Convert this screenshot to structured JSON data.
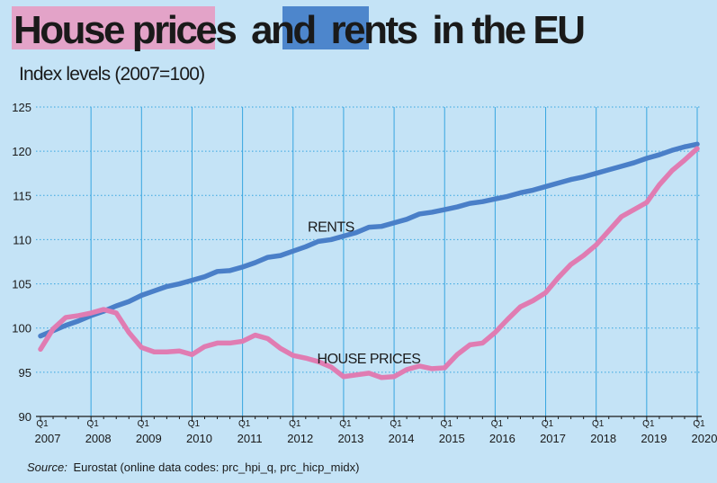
{
  "title": {
    "part1": "House prices",
    "part2": "and",
    "part3": "rents",
    "part4": "in the EU"
  },
  "subtitle": "Index levels (2007=100)",
  "source": {
    "label": "Source:",
    "text": "Eurostat (online data codes: prc_hpi_q, prc_hicp_midx)"
  },
  "colors": {
    "background": "#c4e3f6",
    "rents": "#4a7fc8",
    "house_prices": "#e07cb2",
    "title_highlight_house": "#e3a3c8",
    "title_highlight_rents": "#4d86cc",
    "rents_label": "#1b4a8a",
    "house_label": "#a02c73",
    "grid": "#36a5e0",
    "axis": "#1a1a1a"
  },
  "chart_data": {
    "type": "line",
    "title": "House prices and rents in the EU",
    "subtitle": "Index levels (2007=100)",
    "xlabel": "",
    "ylabel": "",
    "ylim": [
      90,
      125
    ],
    "yticks": [
      90,
      95,
      100,
      105,
      110,
      115,
      120,
      125
    ],
    "grid": true,
    "x_start": "2007Q1",
    "x_end": "2020Q1",
    "year_ticks": [
      {
        "q": "Q1",
        "year": "2007"
      },
      {
        "q": "Q1",
        "year": "2008"
      },
      {
        "q": "Q1",
        "year": "2009"
      },
      {
        "q": "Q1",
        "year": "2010"
      },
      {
        "q": "Q1",
        "year": "2011"
      },
      {
        "q": "Q1",
        "year": "2012"
      },
      {
        "q": "Q1",
        "year": "2013"
      },
      {
        "q": "Q1",
        "year": "2014"
      },
      {
        "q": "Q1",
        "year": "2015"
      },
      {
        "q": "Q1",
        "year": "2016"
      },
      {
        "q": "Q1",
        "year": "2017"
      },
      {
        "q": "Q1",
        "year": "2018"
      },
      {
        "q": "Q1",
        "year": "2019"
      },
      {
        "q": "Q1",
        "year": "2020"
      }
    ],
    "series": [
      {
        "name": "RENTS",
        "color": "#4a7fc8",
        "values": [
          99.1,
          99.7,
          100.3,
          100.8,
          101.4,
          101.9,
          102.5,
          103.0,
          103.7,
          104.2,
          104.7,
          105.0,
          105.4,
          105.8,
          106.4,
          106.5,
          106.9,
          107.4,
          108.0,
          108.2,
          108.7,
          109.2,
          109.8,
          110.0,
          110.4,
          110.8,
          111.4,
          111.5,
          111.9,
          112.3,
          112.9,
          113.1,
          113.4,
          113.7,
          114.1,
          114.3,
          114.6,
          114.9,
          115.3,
          115.6,
          116.0,
          116.4,
          116.8,
          117.1,
          117.5,
          117.9,
          118.3,
          118.7,
          119.2,
          119.6,
          120.1,
          120.5,
          120.8
        ]
      },
      {
        "name": "HOUSE PRICES",
        "color": "#e07cb2",
        "values": [
          97.6,
          99.9,
          101.2,
          101.4,
          101.7,
          102.1,
          101.7,
          99.5,
          97.8,
          97.3,
          97.3,
          97.4,
          97.0,
          97.9,
          98.3,
          98.3,
          98.5,
          99.2,
          98.8,
          97.7,
          96.9,
          96.6,
          96.2,
          95.6,
          94.5,
          94.7,
          94.9,
          94.4,
          94.5,
          95.3,
          95.7,
          95.4,
          95.5,
          97.0,
          98.1,
          98.3,
          99.5,
          101.0,
          102.4,
          103.1,
          104.0,
          105.7,
          107.2,
          108.2,
          109.4,
          111.0,
          112.6,
          113.4,
          114.2,
          116.2,
          117.8,
          119.0,
          120.3
        ]
      }
    ],
    "annotations": [
      {
        "text": "RENTS",
        "series": "RENTS"
      },
      {
        "text": "HOUSE PRICES",
        "series": "HOUSE PRICES"
      }
    ]
  }
}
